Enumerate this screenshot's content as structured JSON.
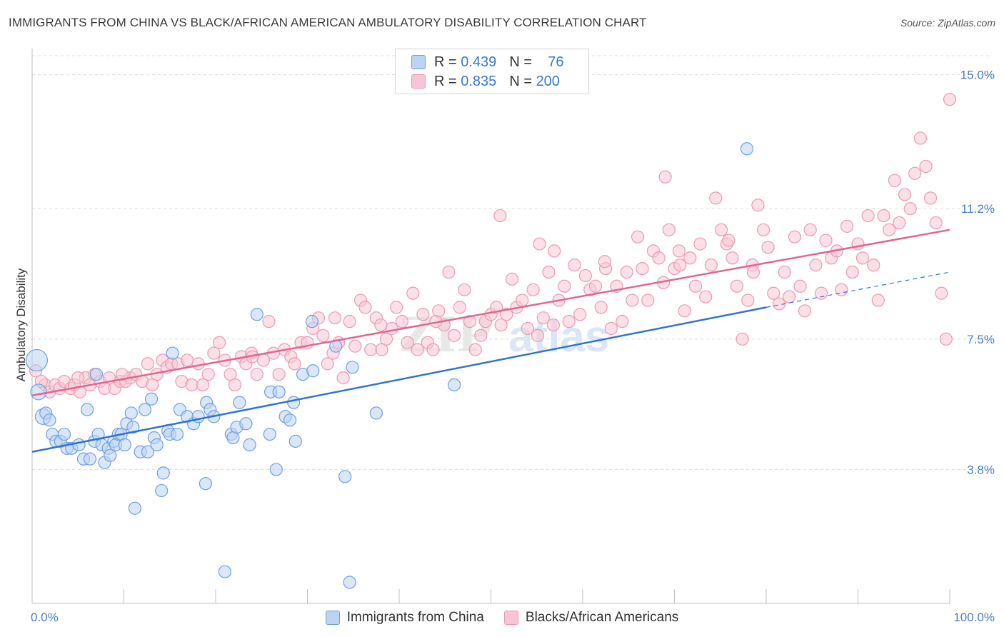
{
  "header": {
    "title": "IMMIGRANTS FROM CHINA VS BLACK/AFRICAN AMERICAN AMBULATORY DISABILITY CORRELATION CHART",
    "source": "Source: ZipAtlas.com"
  },
  "legend": {
    "series1": {
      "r_label": "R =",
      "r_value": "0.439",
      "n_label": "N =",
      "n_value": "76"
    },
    "series2": {
      "r_label": "R =",
      "r_value": "0.835",
      "n_label": "N =",
      "n_value": "200"
    }
  },
  "watermark": "ZIPatlas",
  "colors": {
    "blue_fill": "#bcd3f2",
    "blue_stroke": "#6f9fdf",
    "blue_line": "#2f74d0",
    "pink_fill": "#f7c6d4",
    "pink_stroke": "#ea9ab2",
    "pink_line": "#e06690",
    "tick_text": "#4a7cc7",
    "grid": "#dcdcdc"
  },
  "chart_data": {
    "type": "scatter",
    "title": "IMMIGRANTS FROM CHINA VS BLACK/AFRICAN AMERICAN AMBULATORY DISABILITY CORRELATION CHART",
    "xlabel": "",
    "ylabel": "Ambulatory Disability",
    "xlim": [
      0,
      100
    ],
    "ylim": [
      0,
      15.6
    ],
    "x_tick_labels": [
      "0.0%",
      "100.0%"
    ],
    "y_ticks": [
      3.8,
      7.5,
      11.2,
      15.0
    ],
    "y_tick_labels": [
      "3.8%",
      "7.5%",
      "11.2%",
      "15.0%"
    ],
    "grid": "horizontal dashed",
    "legend_position": "top-center",
    "series": [
      {
        "name": "Immigrants from China",
        "color": "#6f9fdf",
        "trend": {
          "x": [
            0,
            80
          ],
          "y": [
            4.3,
            8.4
          ],
          "extension_x": [
            80,
            100
          ],
          "extension_y": [
            8.4,
            9.4
          ]
        },
        "points": [
          [
            0.5,
            6.9
          ],
          [
            0.7,
            6.0
          ],
          [
            1.2,
            5.3
          ],
          [
            1.5,
            5.4
          ],
          [
            1.9,
            5.2
          ],
          [
            2.2,
            4.8
          ],
          [
            2.6,
            4.6
          ],
          [
            3.1,
            4.6
          ],
          [
            3.5,
            4.8
          ],
          [
            3.8,
            4.4
          ],
          [
            4.3,
            4.4
          ],
          [
            5.1,
            4.5
          ],
          [
            5.6,
            4.1
          ],
          [
            6.0,
            5.5
          ],
          [
            6.3,
            4.1
          ],
          [
            6.8,
            4.6
          ],
          [
            7.0,
            6.5
          ],
          [
            7.2,
            4.8
          ],
          [
            7.6,
            4.5
          ],
          [
            7.9,
            4.0
          ],
          [
            8.3,
            4.4
          ],
          [
            8.5,
            4.2
          ],
          [
            8.9,
            4.6
          ],
          [
            9.1,
            4.5
          ],
          [
            9.4,
            4.8
          ],
          [
            9.7,
            4.8
          ],
          [
            10.1,
            4.5
          ],
          [
            10.3,
            5.1
          ],
          [
            10.8,
            5.4
          ],
          [
            11.0,
            5.0
          ],
          [
            11.2,
            2.7
          ],
          [
            11.8,
            4.3
          ],
          [
            12.3,
            5.5
          ],
          [
            12.6,
            4.3
          ],
          [
            13.0,
            5.8
          ],
          [
            13.3,
            4.7
          ],
          [
            13.6,
            4.5
          ],
          [
            14.1,
            3.2
          ],
          [
            14.3,
            3.7
          ],
          [
            14.8,
            4.9
          ],
          [
            15.0,
            4.8
          ],
          [
            15.3,
            7.1
          ],
          [
            15.8,
            4.8
          ],
          [
            16.1,
            5.5
          ],
          [
            16.9,
            5.3
          ],
          [
            17.6,
            5.1
          ],
          [
            18.1,
            5.3
          ],
          [
            18.9,
            3.4
          ],
          [
            19.0,
            5.7
          ],
          [
            19.4,
            5.5
          ],
          [
            19.8,
            5.3
          ],
          [
            21.0,
            0.9
          ],
          [
            21.7,
            4.8
          ],
          [
            21.9,
            4.7
          ],
          [
            22.3,
            5.0
          ],
          [
            22.6,
            5.7
          ],
          [
            23.3,
            5.1
          ],
          [
            23.7,
            4.5
          ],
          [
            24.5,
            8.2
          ],
          [
            25.9,
            4.8
          ],
          [
            26.0,
            6.0
          ],
          [
            26.6,
            3.8
          ],
          [
            26.9,
            6.0
          ],
          [
            27.6,
            5.3
          ],
          [
            28.1,
            5.2
          ],
          [
            28.5,
            5.7
          ],
          [
            28.7,
            4.6
          ],
          [
            29.5,
            6.5
          ],
          [
            30.5,
            8.0
          ],
          [
            30.6,
            6.6
          ],
          [
            33.1,
            7.3
          ],
          [
            34.1,
            3.6
          ],
          [
            34.6,
            0.6
          ],
          [
            34.9,
            6.7
          ],
          [
            37.5,
            5.4
          ],
          [
            46.0,
            6.2
          ],
          [
            77.9,
            12.9
          ]
        ]
      },
      {
        "name": "Blacks/African Americans",
        "color": "#ea9ab2",
        "trend": {
          "x": [
            0,
            100
          ],
          "y": [
            5.9,
            10.6
          ]
        },
        "points": [
          [
            0.4,
            6.6
          ],
          [
            1.4,
            6.2
          ],
          [
            1.9,
            6.0
          ],
          [
            2.5,
            6.2
          ],
          [
            3.0,
            6.1
          ],
          [
            3.5,
            6.3
          ],
          [
            4.2,
            6.1
          ],
          [
            4.6,
            6.2
          ],
          [
            5.2,
            6.0
          ],
          [
            5.8,
            6.4
          ],
          [
            6.3,
            6.2
          ],
          [
            6.8,
            6.5
          ],
          [
            7.4,
            6.3
          ],
          [
            7.9,
            6.1
          ],
          [
            8.4,
            6.4
          ],
          [
            9.0,
            6.1
          ],
          [
            9.6,
            6.3
          ],
          [
            10.2,
            6.3
          ],
          [
            10.7,
            6.4
          ],
          [
            11.3,
            6.5
          ],
          [
            12.0,
            6.3
          ],
          [
            12.6,
            6.8
          ],
          [
            13.1,
            6.2
          ],
          [
            13.6,
            6.5
          ],
          [
            14.2,
            6.9
          ],
          [
            14.7,
            6.7
          ],
          [
            15.2,
            6.8
          ],
          [
            15.9,
            6.8
          ],
          [
            16.3,
            6.3
          ],
          [
            16.9,
            6.9
          ],
          [
            17.4,
            6.2
          ],
          [
            18.1,
            6.8
          ],
          [
            18.6,
            6.2
          ],
          [
            19.2,
            6.5
          ],
          [
            19.8,
            7.1
          ],
          [
            20.4,
            7.4
          ],
          [
            21.0,
            6.9
          ],
          [
            21.6,
            6.5
          ],
          [
            22.1,
            6.2
          ],
          [
            22.8,
            7.0
          ],
          [
            23.3,
            6.8
          ],
          [
            23.9,
            7.1
          ],
          [
            24.5,
            6.5
          ],
          [
            25.2,
            6.9
          ],
          [
            25.8,
            8.0
          ],
          [
            26.3,
            7.1
          ],
          [
            26.9,
            6.5
          ],
          [
            27.5,
            7.2
          ],
          [
            28.2,
            7.0
          ],
          [
            28.6,
            6.8
          ],
          [
            29.3,
            7.4
          ],
          [
            30.0,
            7.4
          ],
          [
            30.6,
            7.8
          ],
          [
            31.2,
            8.1
          ],
          [
            31.7,
            7.6
          ],
          [
            32.2,
            6.8
          ],
          [
            32.8,
            7.1
          ],
          [
            33.4,
            7.4
          ],
          [
            33.9,
            6.4
          ],
          [
            34.6,
            8.0
          ],
          [
            35.2,
            7.3
          ],
          [
            35.8,
            8.6
          ],
          [
            36.3,
            8.4
          ],
          [
            36.9,
            7.2
          ],
          [
            37.5,
            8.1
          ],
          [
            38.1,
            7.2
          ],
          [
            38.6,
            7.5
          ],
          [
            39.2,
            7.8
          ],
          [
            39.7,
            8.4
          ],
          [
            40.3,
            8.0
          ],
          [
            40.9,
            7.4
          ],
          [
            41.5,
            8.8
          ],
          [
            42.0,
            7.2
          ],
          [
            42.6,
            8.2
          ],
          [
            43.1,
            7.4
          ],
          [
            43.7,
            7.2
          ],
          [
            44.3,
            8.3
          ],
          [
            44.9,
            7.9
          ],
          [
            45.4,
            9.4
          ],
          [
            46.0,
            7.6
          ],
          [
            46.6,
            8.4
          ],
          [
            47.1,
            8.9
          ],
          [
            47.7,
            8.0
          ],
          [
            48.3,
            7.2
          ],
          [
            48.9,
            7.6
          ],
          [
            49.4,
            8.0
          ],
          [
            50.0,
            8.2
          ],
          [
            50.6,
            8.4
          ],
          [
            51.1,
            7.9
          ],
          [
            51.7,
            8.2
          ],
          [
            52.3,
            9.2
          ],
          [
            52.8,
            8.4
          ],
          [
            53.4,
            8.6
          ],
          [
            54.0,
            7.8
          ],
          [
            54.6,
            8.9
          ],
          [
            55.1,
            7.6
          ],
          [
            55.7,
            8.1
          ],
          [
            56.3,
            9.4
          ],
          [
            56.8,
            7.9
          ],
          [
            57.4,
            8.6
          ],
          [
            58.0,
            9.0
          ],
          [
            58.5,
            8.0
          ],
          [
            59.1,
            9.6
          ],
          [
            59.7,
            8.2
          ],
          [
            60.3,
            9.3
          ],
          [
            60.8,
            8.9
          ],
          [
            61.4,
            9.0
          ],
          [
            62.0,
            8.4
          ],
          [
            62.5,
            9.5
          ],
          [
            63.1,
            7.8
          ],
          [
            63.7,
            9.0
          ],
          [
            64.3,
            8.0
          ],
          [
            64.8,
            9.4
          ],
          [
            65.4,
            8.6
          ],
          [
            66.0,
            10.4
          ],
          [
            66.5,
            9.5
          ],
          [
            67.1,
            8.6
          ],
          [
            67.7,
            10.0
          ],
          [
            68.3,
            9.8
          ],
          [
            68.8,
            9.1
          ],
          [
            69.4,
            10.6
          ],
          [
            70.0,
            9.5
          ],
          [
            70.5,
            10.0
          ],
          [
            71.1,
            8.3
          ],
          [
            71.7,
            9.8
          ],
          [
            72.3,
            9.0
          ],
          [
            72.8,
            10.2
          ],
          [
            73.4,
            8.7
          ],
          [
            74.0,
            9.6
          ],
          [
            74.5,
            11.5
          ],
          [
            75.1,
            10.6
          ],
          [
            75.7,
            10.2
          ],
          [
            76.3,
            9.8
          ],
          [
            76.8,
            9.0
          ],
          [
            77.4,
            7.5
          ],
          [
            78.0,
            8.6
          ],
          [
            78.5,
            9.6
          ],
          [
            79.1,
            11.3
          ],
          [
            79.7,
            10.6
          ],
          [
            80.2,
            10.1
          ],
          [
            80.8,
            8.8
          ],
          [
            81.4,
            8.5
          ],
          [
            82.0,
            9.4
          ],
          [
            82.5,
            8.7
          ],
          [
            83.1,
            10.4
          ],
          [
            83.7,
            9.0
          ],
          [
            84.2,
            8.3
          ],
          [
            84.8,
            10.6
          ],
          [
            85.4,
            9.6
          ],
          [
            86.0,
            8.8
          ],
          [
            86.5,
            10.3
          ],
          [
            87.1,
            9.8
          ],
          [
            87.7,
            10.0
          ],
          [
            88.2,
            8.9
          ],
          [
            88.8,
            10.7
          ],
          [
            89.4,
            9.4
          ],
          [
            90.0,
            10.2
          ],
          [
            90.5,
            9.8
          ],
          [
            91.1,
            11.0
          ],
          [
            91.7,
            9.6
          ],
          [
            92.2,
            8.6
          ],
          [
            92.8,
            11.0
          ],
          [
            93.4,
            10.6
          ],
          [
            94.0,
            12.0
          ],
          [
            94.5,
            10.8
          ],
          [
            95.1,
            11.6
          ],
          [
            95.7,
            11.2
          ],
          [
            96.2,
            12.2
          ],
          [
            96.8,
            13.2
          ],
          [
            97.4,
            12.4
          ],
          [
            97.9,
            11.5
          ],
          [
            98.5,
            10.8
          ],
          [
            99.1,
            8.8
          ],
          [
            99.6,
            7.5
          ],
          [
            100.0,
            14.3
          ],
          [
            1.0,
            6.3
          ],
          [
            5.0,
            6.4
          ],
          [
            9.8,
            6.5
          ],
          [
            24.0,
            7.0
          ],
          [
            44.0,
            8.0
          ],
          [
            33.0,
            8.1
          ],
          [
            38.0,
            7.9
          ],
          [
            51.0,
            11.0
          ],
          [
            69.0,
            12.1
          ],
          [
            78.6,
            9.4
          ],
          [
            70.6,
            9.6
          ],
          [
            62.4,
            9.7
          ],
          [
            75.9,
            10.3
          ],
          [
            55.3,
            10.2
          ],
          [
            56.9,
            10.0
          ]
        ]
      }
    ]
  },
  "bottom_legend": {
    "item1": "Immigrants from China",
    "item2": "Blacks/African Americans"
  }
}
